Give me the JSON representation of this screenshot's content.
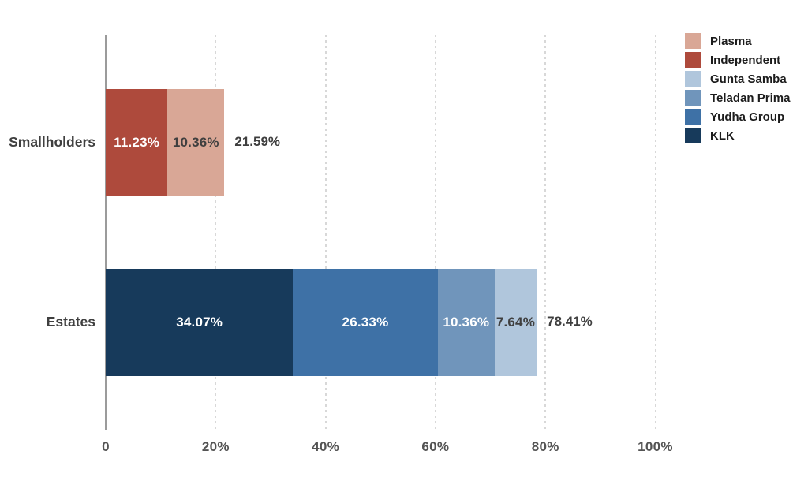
{
  "chart_data": {
    "type": "bar",
    "orientation": "horizontal",
    "stacked": true,
    "title": "",
    "xlabel": "",
    "ylabel": "",
    "xlim": [
      0,
      100
    ],
    "grid": "vertical-dotted",
    "legend_position": "top-right",
    "categories": [
      "Smallholders",
      "Estates"
    ],
    "series": [
      {
        "name": "Plasma",
        "color": "#D9A796",
        "values": [
          10.36,
          0
        ]
      },
      {
        "name": "Independent",
        "color": "#AE4A3C",
        "values": [
          11.23,
          0
        ]
      },
      {
        "name": "Gunta Samba",
        "color": "#B0C6DC",
        "values": [
          0,
          7.64
        ]
      },
      {
        "name": "Teladan Prima",
        "color": "#7095BB",
        "values": [
          0,
          10.36
        ]
      },
      {
        "name": "Yudha Group",
        "color": "#3E71A6",
        "values": [
          0,
          26.33
        ]
      },
      {
        "name": "KLK",
        "color": "#173A5B",
        "values": [
          0,
          34.07
        ]
      }
    ],
    "bars": [
      {
        "category": "Smallholders",
        "total": 21.59,
        "total_label": "21.59%",
        "segments": [
          {
            "name": "Independent",
            "value": 11.23,
            "label": "11.23%",
            "color": "#AE4A3C",
            "label_color": "#FFFFFF"
          },
          {
            "name": "Plasma",
            "value": 10.36,
            "label": "10.36%",
            "color": "#D9A796",
            "label_color": "#3F3F3F"
          }
        ]
      },
      {
        "category": "Estates",
        "total": 78.41,
        "total_label": "78.41%",
        "segments": [
          {
            "name": "KLK",
            "value": 34.07,
            "label": "34.07%",
            "color": "#173A5B",
            "label_color": "#FFFFFF"
          },
          {
            "name": "Yudha Group",
            "value": 26.33,
            "label": "26.33%",
            "color": "#3E71A6",
            "label_color": "#FFFFFF"
          },
          {
            "name": "Teladan Prima",
            "value": 10.36,
            "label": "10.36%",
            "color": "#7095BB",
            "label_color": "#FFFFFF"
          },
          {
            "name": "Gunta Samba",
            "value": 7.64,
            "label": "7.64%",
            "color": "#B0C6DC",
            "label_color": "#3F3F3F"
          }
        ]
      }
    ],
    "x_axis": {
      "ticks": [
        {
          "value": 0,
          "label": "0"
        },
        {
          "value": 20,
          "label": "20%"
        },
        {
          "value": 40,
          "label": "40%"
        },
        {
          "value": 60,
          "label": "60%"
        },
        {
          "value": 80,
          "label": "80%"
        },
        {
          "value": 100,
          "label": "100%"
        }
      ],
      "gridlines": [
        20,
        40,
        60,
        80,
        100
      ]
    },
    "legend": [
      {
        "label": "Plasma",
        "color": "#D9A796"
      },
      {
        "label": "Independent",
        "color": "#AE4A3C"
      },
      {
        "label": "Gunta Samba",
        "color": "#B0C6DC"
      },
      {
        "label": "Teladan Prima",
        "color": "#7095BB"
      },
      {
        "label": "Yudha Group",
        "color": "#3E71A6"
      },
      {
        "label": "KLK",
        "color": "#173A5B"
      }
    ],
    "colors": {
      "background": "#FFFFFF",
      "axis_line": "#9B9B9B",
      "gridline": "#D8D8D8",
      "tick_label": "#545454",
      "category_label": "#3F3F3F",
      "total_label": "#3F3F3F",
      "legend_label": "#1C1C1C"
    }
  }
}
